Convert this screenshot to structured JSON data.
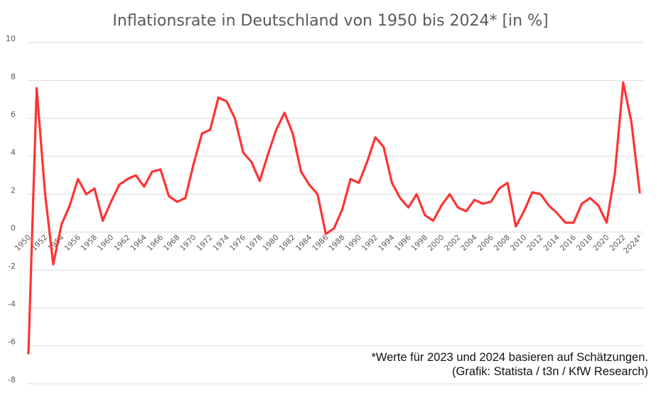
{
  "chart_data": {
    "type": "line",
    "title": "Inflationsrate in Deutschland von 1950 bis 2024* [in %]",
    "xlabel": "",
    "ylabel": "",
    "ylim": [
      -8,
      10
    ],
    "yticks": [
      10,
      8,
      6,
      4,
      2,
      0,
      -2,
      -4,
      -6,
      -8
    ],
    "grid": true,
    "legend": "none",
    "x": [
      1950,
      1951,
      1952,
      1953,
      1954,
      1955,
      1956,
      1957,
      1958,
      1959,
      1960,
      1961,
      1962,
      1963,
      1964,
      1965,
      1966,
      1967,
      1968,
      1969,
      1970,
      1971,
      1972,
      1973,
      1974,
      1975,
      1976,
      1977,
      1978,
      1979,
      1980,
      1981,
      1982,
      1983,
      1984,
      1985,
      1986,
      1987,
      1988,
      1989,
      1990,
      1991,
      1992,
      1993,
      1994,
      1995,
      1996,
      1997,
      1998,
      1999,
      2000,
      2001,
      2002,
      2003,
      2004,
      2005,
      2006,
      2007,
      2008,
      2009,
      2010,
      2011,
      2012,
      2013,
      2014,
      2015,
      2016,
      2017,
      2018,
      2019,
      2020,
      2021,
      2022,
      2023,
      2024
    ],
    "xtick_labels": [
      "1950",
      "1952",
      "1954",
      "1956",
      "1958",
      "1960",
      "1962",
      "1964",
      "1966",
      "1968",
      "1970",
      "1972",
      "1974",
      "1976",
      "1978",
      "1980",
      "1982",
      "1984",
      "1986",
      "1988",
      "1990",
      "1992",
      "1994",
      "1996",
      "1998",
      "2000",
      "2002",
      "2004",
      "2006",
      "2008",
      "2010",
      "2012",
      "2014",
      "2016",
      "2018",
      "2020",
      "2022",
      "2024*"
    ],
    "series": [
      {
        "name": "Inflationsrate",
        "color": "#ff3333",
        "values": [
          -6.4,
          7.6,
          2.1,
          -1.7,
          0.4,
          1.4,
          2.8,
          2.0,
          2.3,
          0.6,
          1.6,
          2.5,
          2.8,
          3.0,
          2.4,
          3.2,
          3.3,
          1.9,
          1.6,
          1.8,
          3.6,
          5.2,
          5.4,
          7.1,
          6.9,
          6.0,
          4.2,
          3.7,
          2.7,
          4.1,
          5.4,
          6.3,
          5.2,
          3.2,
          2.5,
          2.0,
          -0.1,
          0.2,
          1.2,
          2.8,
          2.6,
          3.7,
          5.0,
          4.5,
          2.6,
          1.8,
          1.3,
          2.0,
          0.9,
          0.6,
          1.4,
          2.0,
          1.3,
          1.1,
          1.7,
          1.5,
          1.6,
          2.3,
          2.6,
          0.3,
          1.1,
          2.1,
          2.0,
          1.4,
          1.0,
          0.5,
          0.5,
          1.5,
          1.8,
          1.4,
          0.5,
          3.1,
          7.9,
          5.8,
          2.1
        ]
      }
    ],
    "annotations": [
      "*Werte für 2023 und 2024 basieren auf Schätzungen.",
      "(Grafik: Statista / t3n / KfW Research)"
    ]
  }
}
